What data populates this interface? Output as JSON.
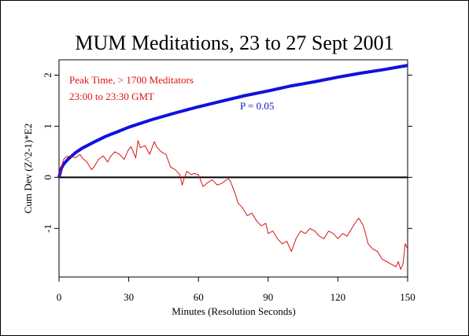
{
  "chart_data": {
    "type": "line",
    "title": "MUM Meditations, 23 to 27 Sept 2001",
    "xlabel": "Minutes (Resolution Seconds)",
    "ylabel": "Cum Dev (Z^2-1)*E2",
    "xlim": [
      0,
      150
    ],
    "ylim": [
      -1.95,
      2.3
    ],
    "x_ticks": [
      0,
      30,
      60,
      90,
      120,
      150
    ],
    "y_ticks": [
      -1,
      0,
      1,
      2
    ],
    "grid": false,
    "annotations": [
      {
        "text": "Peak Time, > 1700 Meditators",
        "color": "#dd1111"
      },
      {
        "text": "23:00 to 23:30 GMT",
        "color": "#dd1111"
      },
      {
        "text": "P = 0.05",
        "color": "#1111cc"
      }
    ],
    "series": [
      {
        "color": "#dd1111",
        "x": [
          0,
          1,
          2,
          3,
          5,
          7,
          9,
          10,
          12,
          14,
          15,
          17,
          19,
          21,
          22,
          24,
          26,
          28,
          30,
          31,
          33,
          34,
          35,
          37,
          39,
          41,
          42,
          44,
          46,
          48,
          50,
          52,
          53,
          54,
          55,
          57,
          58,
          60,
          62,
          64,
          66,
          68,
          70,
          72,
          73,
          74,
          76,
          77,
          79,
          81,
          83,
          85,
          87,
          89,
          90,
          92,
          94,
          96,
          98,
          100,
          102,
          104,
          106,
          108,
          110,
          112,
          114,
          116,
          118,
          120,
          122,
          124,
          126,
          128,
          129,
          131,
          133,
          135,
          137,
          139,
          141,
          143,
          145,
          146,
          147,
          148,
          149,
          150
        ],
        "values": [
          0.0,
          0.2,
          0.35,
          0.4,
          0.42,
          0.38,
          0.45,
          0.38,
          0.3,
          0.15,
          0.2,
          0.35,
          0.42,
          0.3,
          0.4,
          0.5,
          0.45,
          0.35,
          0.55,
          0.6,
          0.38,
          0.72,
          0.58,
          0.62,
          0.45,
          0.7,
          0.6,
          0.5,
          0.45,
          0.2,
          0.15,
          0.05,
          -0.15,
          0.0,
          0.12,
          0.05,
          0.08,
          0.05,
          -0.18,
          -0.1,
          -0.05,
          -0.15,
          -0.12,
          -0.05,
          -0.03,
          -0.1,
          -0.35,
          -0.5,
          -0.6,
          -0.75,
          -0.7,
          -0.85,
          -0.95,
          -0.9,
          -1.1,
          -1.05,
          -1.2,
          -1.3,
          -1.25,
          -1.45,
          -1.2,
          -1.05,
          -1.1,
          -1.0,
          -1.05,
          -1.15,
          -1.2,
          -1.05,
          -1.1,
          -1.2,
          -1.1,
          -1.15,
          -1.0,
          -0.85,
          -0.8,
          -0.95,
          -1.3,
          -1.4,
          -1.45,
          -1.6,
          -1.65,
          -1.7,
          -1.75,
          -1.65,
          -1.8,
          -1.7,
          -1.3,
          -1.4
        ]
      },
      {
        "name": "P = 0.05",
        "color": "#1111dd",
        "x": [
          0,
          1,
          2,
          3,
          4,
          5,
          7,
          10,
          15,
          20,
          25,
          30,
          40,
          50,
          60,
          70,
          80,
          90,
          100,
          110,
          120,
          130,
          140,
          150
        ],
        "values": [
          0.0,
          0.18,
          0.26,
          0.31,
          0.36,
          0.4,
          0.48,
          0.57,
          0.69,
          0.8,
          0.89,
          0.98,
          1.13,
          1.26,
          1.38,
          1.49,
          1.6,
          1.69,
          1.79,
          1.87,
          1.96,
          2.04,
          2.11,
          2.19
        ]
      }
    ]
  }
}
